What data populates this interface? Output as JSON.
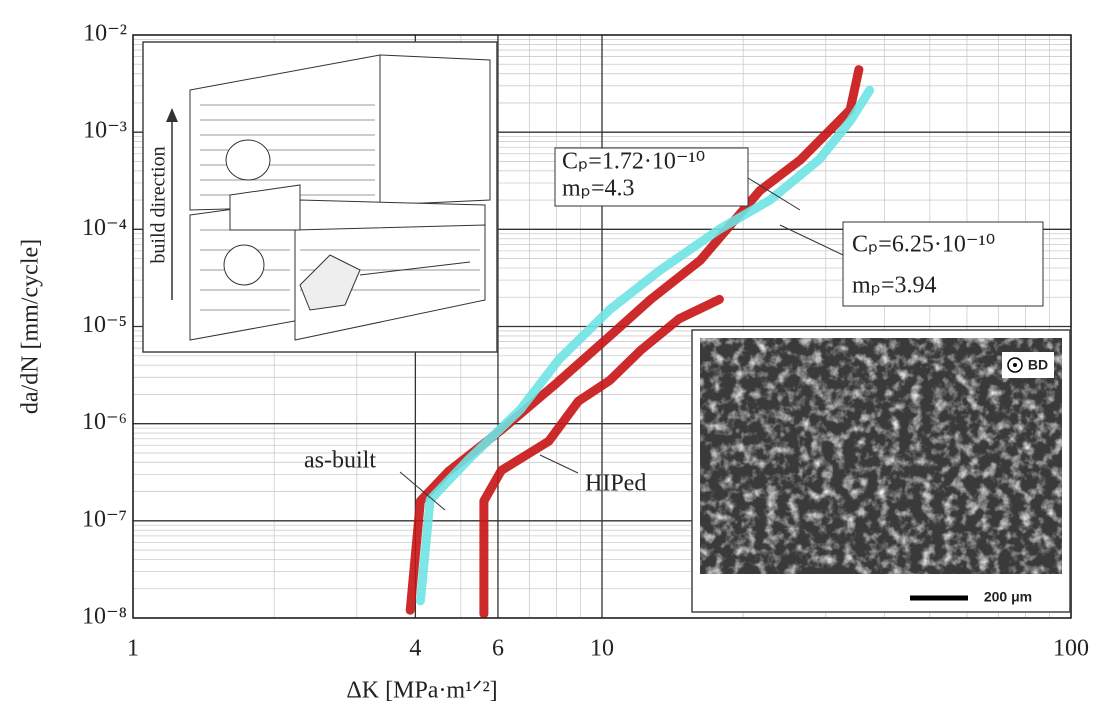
{
  "chart_data": {
    "type": "line",
    "xlabel": "ΔK [MPa·m¹ᐟ²]",
    "ylabel": "da/dN [mm/cycle]",
    "xscale": "log",
    "yscale": "log",
    "grid": true,
    "minor_grid": true,
    "xlim": [
      1,
      100
    ],
    "xticks": [
      1,
      4,
      6,
      10,
      100
    ],
    "ylim": [
      1e-08,
      0.01
    ],
    "yticks": [
      {
        "value": 1e-08,
        "label": "10⁻⁸"
      },
      {
        "value": 1e-07,
        "label": "10⁻⁷"
      },
      {
        "value": 1e-06,
        "label": "10⁻⁶"
      },
      {
        "value": 1e-05,
        "label": "10⁻⁵"
      },
      {
        "value": 0.0001,
        "label": "10⁻⁴"
      },
      {
        "value": 0.001,
        "label": "10⁻³"
      },
      {
        "value": 0.01,
        "label": "10⁻²"
      }
    ],
    "series": [
      {
        "name": "as-built",
        "color": "#6fe3e3",
        "x": [
          4.1,
          4.3,
          5.2,
          6.7,
          8.1,
          10.4,
          13.3,
          17.8,
          22.8,
          29,
          33.8,
          37.2
        ],
        "values": [
          1.5e-08,
          1.65e-07,
          4.3e-07,
          1.4e-06,
          4.6e-06,
          1.5e-05,
          3.8e-05,
          0.0001,
          0.0002,
          0.00052,
          0.0013,
          0.0027
        ]
      },
      {
        "color": "#c81414",
        "x": [
          3.9,
          4.1,
          4.7,
          6.1,
          8.0,
          10.4,
          12.7,
          16.2,
          21.7,
          26.5,
          33.8,
          35.3
        ],
        "values": [
          1.2e-08,
          1.6e-07,
          3.2e-07,
          8.6e-07,
          2.6e-06,
          8e-06,
          1.9e-05,
          4.8e-05,
          0.00025,
          0.00052,
          0.0017,
          0.0044
        ]
      },
      {
        "name": "HIPed",
        "color": "#c81414",
        "x": [
          5.6,
          5.6,
          6.1,
          7.7,
          8.9,
          10.4,
          12.1,
          14.6,
          17.8
        ],
        "values": [
          1.1e-08,
          1.6e-07,
          3.3e-07,
          6.6e-07,
          1.7e-06,
          2.8e-06,
          5.7e-06,
          1.2e-05,
          1.9e-05
        ]
      }
    ],
    "annotations": [
      "Cₚ=1.72·10⁻¹⁰",
      "mₚ=4.3",
      "Cₚ=6.25·10⁻¹⁰",
      "mₚ=3.94"
    ],
    "insets": {
      "drawing_label": "build direction",
      "sem_label": "BD",
      "scale_bar": "200 μm"
    }
  }
}
